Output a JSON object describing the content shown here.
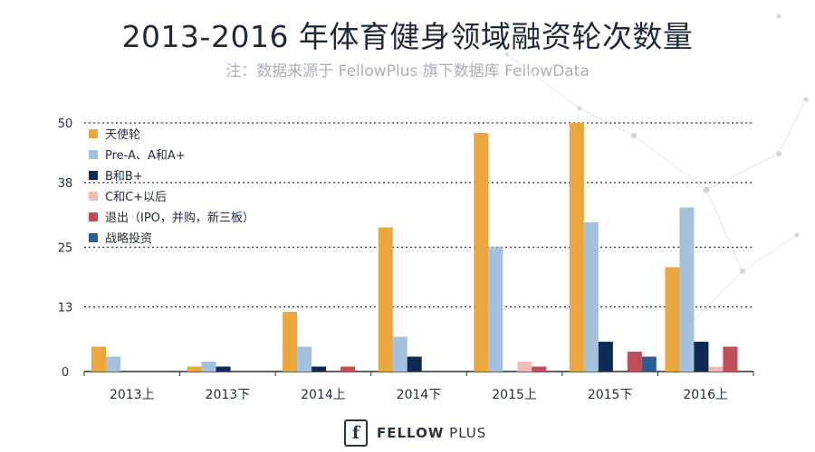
{
  "page": {
    "title": "2013-2016 年体育健身领域融资轮次数量",
    "subtitle": "注：数据来源于 FellowPlus 旗下数据库 FellowData"
  },
  "footer": {
    "brand_bold": "FELLOW",
    "brand_light": " PLUS",
    "logo_glyph": "f"
  },
  "colors": {
    "grid": "#2b2f36",
    "axis": "#2b2f36",
    "text": "#1f2d3d"
  },
  "chart_data": {
    "type": "bar",
    "title": "2013-2016 年体育健身领域融资轮次数量",
    "categories": [
      "2013上",
      "2013下",
      "2014上",
      "2014下",
      "2015上",
      "2015下",
      "2016上"
    ],
    "yticks": [
      0,
      13,
      25,
      38,
      50
    ],
    "ylim": [
      0,
      50
    ],
    "grid": true,
    "legend_position": "top-left",
    "series": [
      {
        "name": "天使轮",
        "color": "#eaa63f",
        "values": [
          5,
          1,
          12,
          29,
          48,
          50,
          21
        ]
      },
      {
        "name": "Pre-A、A和A+",
        "color": "#a4c0dc",
        "values": [
          3,
          2,
          5,
          7,
          25,
          30,
          33
        ]
      },
      {
        "name": "B和B+",
        "color": "#102a56",
        "values": [
          0,
          1,
          1,
          3,
          0,
          6,
          6
        ]
      },
      {
        "name": "C和C+以后",
        "color": "#f0bcba",
        "values": [
          0,
          0,
          0,
          0,
          2,
          0,
          1
        ]
      },
      {
        "name": "退出（IPO，并购，新三板）",
        "color": "#c14c5a",
        "values": [
          0,
          0,
          1,
          0,
          1,
          4,
          5
        ]
      },
      {
        "name": "战略投资",
        "color": "#2c5e94",
        "values": [
          0,
          0,
          0,
          0,
          0,
          3,
          0
        ]
      }
    ]
  }
}
